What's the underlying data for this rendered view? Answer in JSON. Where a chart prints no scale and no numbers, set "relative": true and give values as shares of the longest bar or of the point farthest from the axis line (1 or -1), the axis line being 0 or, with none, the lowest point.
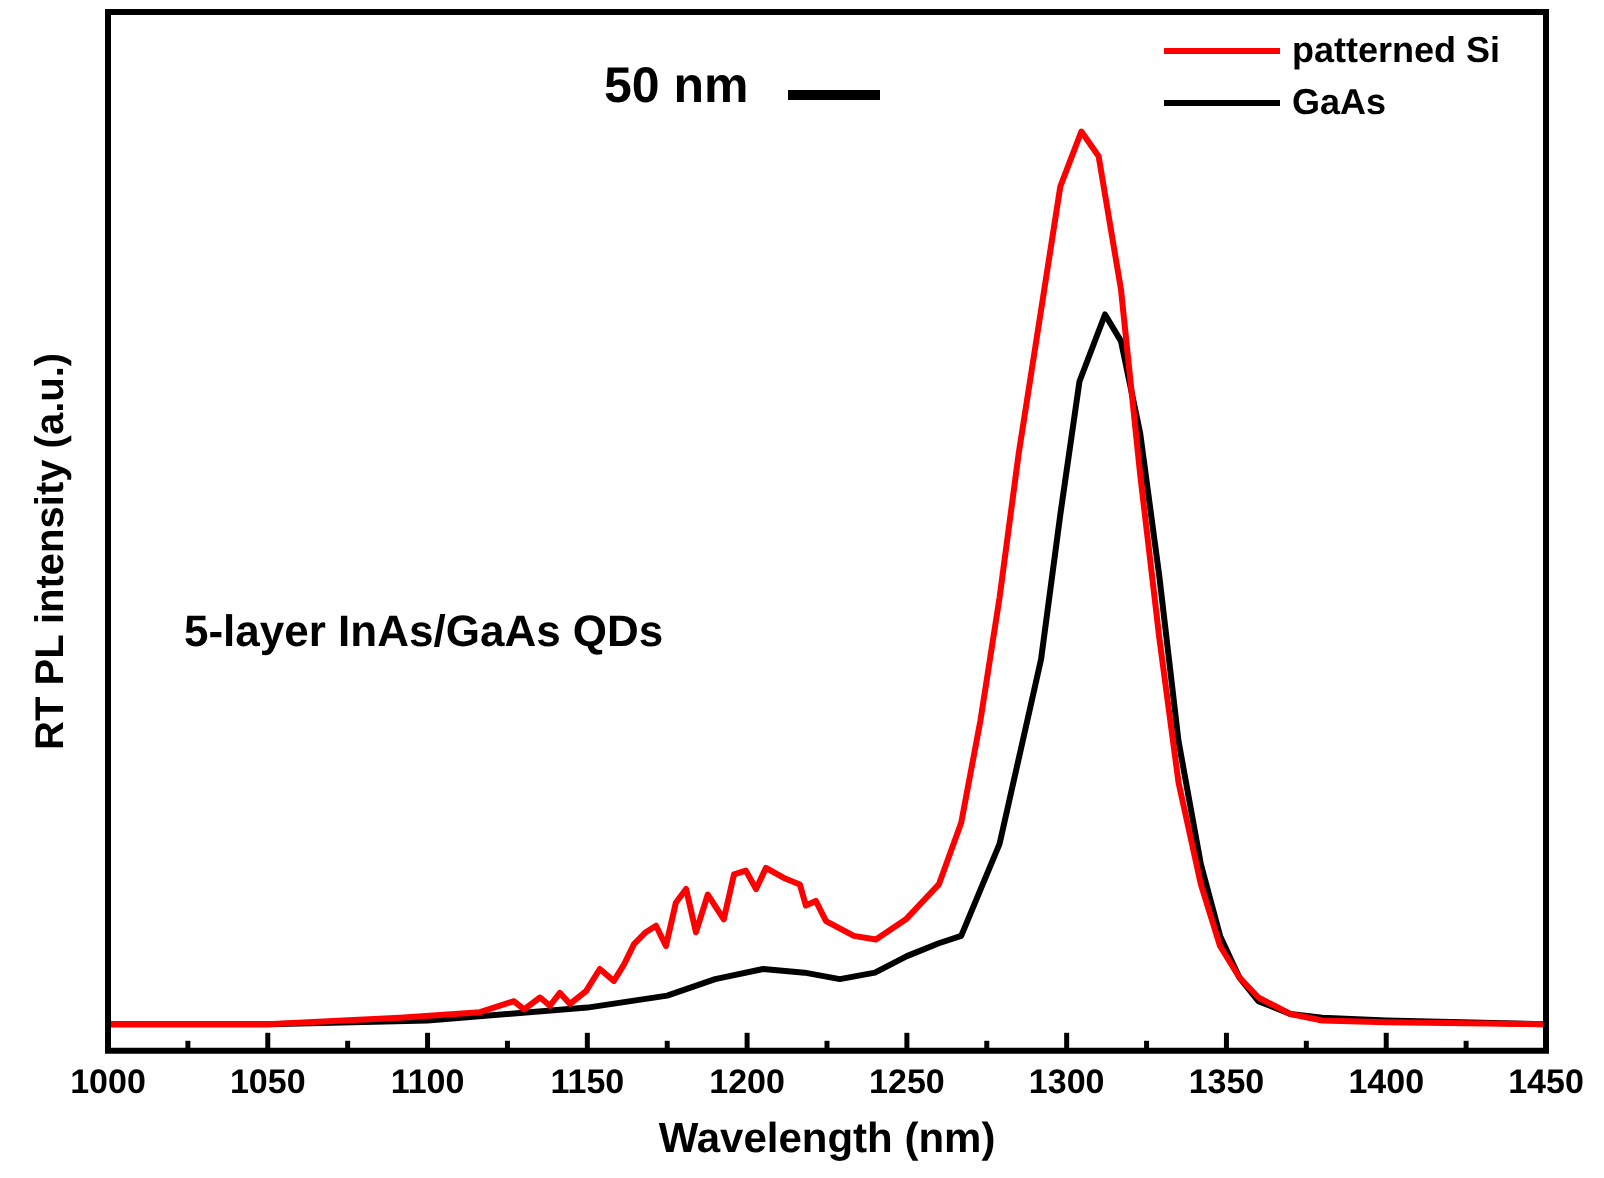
{
  "chart_data": {
    "type": "line",
    "relative": true,
    "xlabel": "Wavelength (nm)",
    "ylabel": "RT PL intensity (a.u.)",
    "annotations": [
      "50 nm",
      "5-layer InAs/GaAs QDs"
    ],
    "xlim": [
      1000,
      1450
    ],
    "xticks": [
      1000,
      {
        "value": 1025,
        "label": null
      },
      1050,
      {
        "value": 1075,
        "label": null
      },
      1100,
      {
        "value": 1125,
        "label": null
      },
      1150,
      {
        "value": 1175,
        "label": null
      },
      1200,
      {
        "value": 1225,
        "label": null
      },
      1250,
      {
        "value": 1275,
        "label": null
      },
      1300,
      {
        "value": 1325,
        "label": null
      },
      1350,
      {
        "value": 1375,
        "label": null
      },
      1400,
      {
        "value": 1425,
        "label": null
      },
      1450
    ],
    "grid": false,
    "legend": "top right",
    "marker": "none",
    "line_style": "solid",
    "series": [
      {
        "name": "patterned Si",
        "color": "#ff0000",
        "x": [
          1000,
          1050,
          1091.4,
          1116.4,
          1127,
          1130.2,
          1135.2,
          1138.3,
          1141.4,
          1144.6,
          1149.6,
          1153.9,
          1158.3,
          1161.5,
          1164.6,
          1168.3,
          1171.5,
          1174.6,
          1177.7,
          1180.9,
          1184,
          1187.7,
          1192.7,
          1195.9,
          1199.6,
          1202.8,
          1205.9,
          1211.5,
          1216.5,
          1218.4,
          1221.5,
          1224.7,
          1233.4,
          1240.3,
          1249.7,
          1260,
          1267,
          1273,
          1279,
          1285,
          1292,
          1298,
          1304.6,
          1310,
          1317,
          1323,
          1329,
          1335,
          1342,
          1348,
          1354,
          1360,
          1370,
          1380,
          1400,
          1450
        ],
        "values": [
          0.029,
          0.029,
          0.036,
          0.042,
          0.054,
          0.045,
          0.058,
          0.049,
          0.063,
          0.051,
          0.065,
          0.089,
          0.076,
          0.094,
          0.116,
          0.129,
          0.136,
          0.114,
          0.161,
          0.176,
          0.129,
          0.17,
          0.143,
          0.192,
          0.196,
          0.176,
          0.199,
          0.188,
          0.181,
          0.158,
          0.163,
          0.141,
          0.125,
          0.121,
          0.143,
          0.181,
          0.248,
          0.359,
          0.493,
          0.65,
          0.806,
          0.94,
          1.0,
          0.973,
          0.828,
          0.627,
          0.449,
          0.292,
          0.181,
          0.114,
          0.08,
          0.058,
          0.04,
          0.033,
          0.031,
          0.029
        ]
      },
      {
        "name": "GaAs",
        "color": "#000000",
        "x": [
          1000,
          1050,
          1100,
          1150,
          1175,
          1190,
          1205,
          1218,
          1229,
          1240,
          1250,
          1260,
          1267,
          1279,
          1292,
          1298,
          1304,
          1312,
          1317,
          1323,
          1329,
          1335,
          1342,
          1348,
          1354,
          1360,
          1370,
          1380,
          1400,
          1450
        ],
        "values": [
          0.029,
          0.029,
          0.033,
          0.047,
          0.06,
          0.078,
          0.089,
          0.085,
          0.078,
          0.085,
          0.103,
          0.117,
          0.125,
          0.225,
          0.426,
          0.583,
          0.728,
          0.801,
          0.772,
          0.672,
          0.516,
          0.337,
          0.203,
          0.125,
          0.08,
          0.054,
          0.04,
          0.036,
          0.033,
          0.029
        ]
      }
    ]
  }
}
